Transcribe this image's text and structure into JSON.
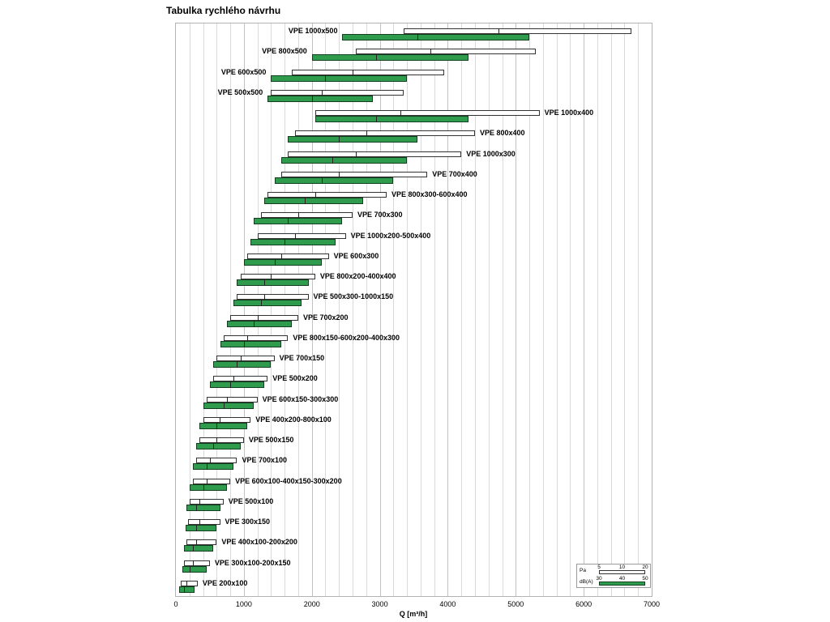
{
  "title": "Tabulka rychlého návrhu",
  "chart_data": {
    "type": "bar",
    "orientation": "horizontal-range",
    "title": "Tabulka rychlého návrhu",
    "xlabel": "Q [m³/h]",
    "xlim": [
      0,
      7000
    ],
    "x_ticks": [
      0,
      1000,
      2000,
      3000,
      4000,
      5000,
      6000,
      7000
    ],
    "grid_step": 200,
    "grid": true,
    "legend_position": "bottom-right",
    "series_meta": {
      "pa": {
        "name": "Pa",
        "levels": [
          5,
          10,
          20
        ],
        "color": "#ffffff",
        "border": "#333333"
      },
      "dba": {
        "name": "dB(A)",
        "levels": [
          30,
          40,
          50
        ],
        "color": "#2e9c4c",
        "border": "#123f1f"
      }
    },
    "rows": [
      {
        "label": "VPE 1000x500",
        "side": "left",
        "pa": [
          3350,
          4750,
          6700
        ],
        "dba": [
          2450,
          3550,
          5200
        ]
      },
      {
        "label": "VPE 800x500",
        "side": "left",
        "pa": [
          2650,
          3750,
          5300
        ],
        "dba": [
          2000,
          2950,
          4300
        ]
      },
      {
        "label": "VPE 600x500",
        "side": "left",
        "pa": [
          1700,
          2600,
          3950
        ],
        "dba": [
          1400,
          2200,
          3400
        ]
      },
      {
        "label": "VPE 500x500",
        "side": "left",
        "pa": [
          1400,
          2150,
          3350
        ],
        "dba": [
          1350,
          2000,
          2900
        ]
      },
      {
        "label": "VPE 1000x400",
        "side": "right",
        "pa": [
          2050,
          3300,
          5350
        ],
        "dba": [
          2050,
          2950,
          4300
        ]
      },
      {
        "label": "VPE 800x400",
        "side": "right",
        "pa": [
          1750,
          2800,
          4400
        ],
        "dba": [
          1650,
          2400,
          3550
        ]
      },
      {
        "label": "VPE 1000x300",
        "side": "right",
        "pa": [
          1650,
          2650,
          4200
        ],
        "dba": [
          1550,
          2300,
          3400
        ]
      },
      {
        "label": "VPE 700x400",
        "side": "right",
        "pa": [
          1550,
          2400,
          3700
        ],
        "dba": [
          1450,
          2150,
          3200
        ]
      },
      {
        "label": "VPE 800x300-600x400",
        "side": "right",
        "pa": [
          1350,
          2050,
          3100
        ],
        "dba": [
          1300,
          1900,
          2750
        ]
      },
      {
        "label": "VPE 700x300",
        "side": "right",
        "pa": [
          1250,
          1800,
          2600
        ],
        "dba": [
          1150,
          1650,
          2450
        ]
      },
      {
        "label": "VPE 1000x200-500x400",
        "side": "right",
        "pa": [
          1200,
          1750,
          2500
        ],
        "dba": [
          1100,
          1600,
          2350
        ]
      },
      {
        "label": "VPE 600x300",
        "side": "right",
        "pa": [
          1050,
          1550,
          2250
        ],
        "dba": [
          1000,
          1450,
          2150
        ]
      },
      {
        "label": "VPE 800x200-400x400",
        "side": "right",
        "pa": [
          950,
          1400,
          2050
        ],
        "dba": [
          900,
          1300,
          1950
        ]
      },
      {
        "label": "VPE 500x300-1000x150",
        "side": "right",
        "pa": [
          900,
          1300,
          1950
        ],
        "dba": [
          850,
          1250,
          1850
        ]
      },
      {
        "label": "VPE 700x200",
        "side": "right",
        "pa": [
          800,
          1200,
          1800
        ],
        "dba": [
          750,
          1150,
          1700
        ]
      },
      {
        "label": "VPE 800x150-600x200-400x300",
        "side": "right",
        "pa": [
          700,
          1050,
          1650
        ],
        "dba": [
          650,
          1000,
          1550
        ]
      },
      {
        "label": "VPE 700x150",
        "side": "right",
        "pa": [
          600,
          950,
          1450
        ],
        "dba": [
          550,
          900,
          1400
        ]
      },
      {
        "label": "VPE 500x200",
        "side": "right",
        "pa": [
          550,
          850,
          1350
        ],
        "dba": [
          500,
          800,
          1300
        ]
      },
      {
        "label": "VPE 600x150-300x300",
        "side": "right",
        "pa": [
          450,
          750,
          1200
        ],
        "dba": [
          400,
          700,
          1150
        ]
      },
      {
        "label": "VPE 400x200-800x100",
        "side": "right",
        "pa": [
          400,
          650,
          1100
        ],
        "dba": [
          350,
          600,
          1050
        ]
      },
      {
        "label": "VPE 500x150",
        "side": "right",
        "pa": [
          350,
          600,
          1000
        ],
        "dba": [
          300,
          550,
          950
        ]
      },
      {
        "label": "VPE 700x100",
        "side": "right",
        "pa": [
          300,
          500,
          900
        ],
        "dba": [
          250,
          450,
          850
        ]
      },
      {
        "label": "VPE 600x100-400x150-300x200",
        "side": "right",
        "pa": [
          250,
          450,
          800
        ],
        "dba": [
          200,
          400,
          750
        ]
      },
      {
        "label": "VPE 500x100",
        "side": "right",
        "pa": [
          200,
          350,
          700
        ],
        "dba": [
          150,
          300,
          650
        ]
      },
      {
        "label": "VPE 300x150",
        "side": "right",
        "pa": [
          180,
          350,
          650
        ],
        "dba": [
          140,
          300,
          600
        ]
      },
      {
        "label": "VPE 400x100-200x200",
        "side": "right",
        "pa": [
          150,
          300,
          600
        ],
        "dba": [
          120,
          250,
          550
        ]
      },
      {
        "label": "VPE 300x100-200x150",
        "side": "right",
        "pa": [
          120,
          250,
          500
        ],
        "dba": [
          100,
          200,
          450
        ]
      },
      {
        "label": "VPE 200x100",
        "side": "right",
        "pa": [
          70,
          150,
          320
        ],
        "dba": [
          50,
          120,
          280
        ]
      }
    ]
  }
}
